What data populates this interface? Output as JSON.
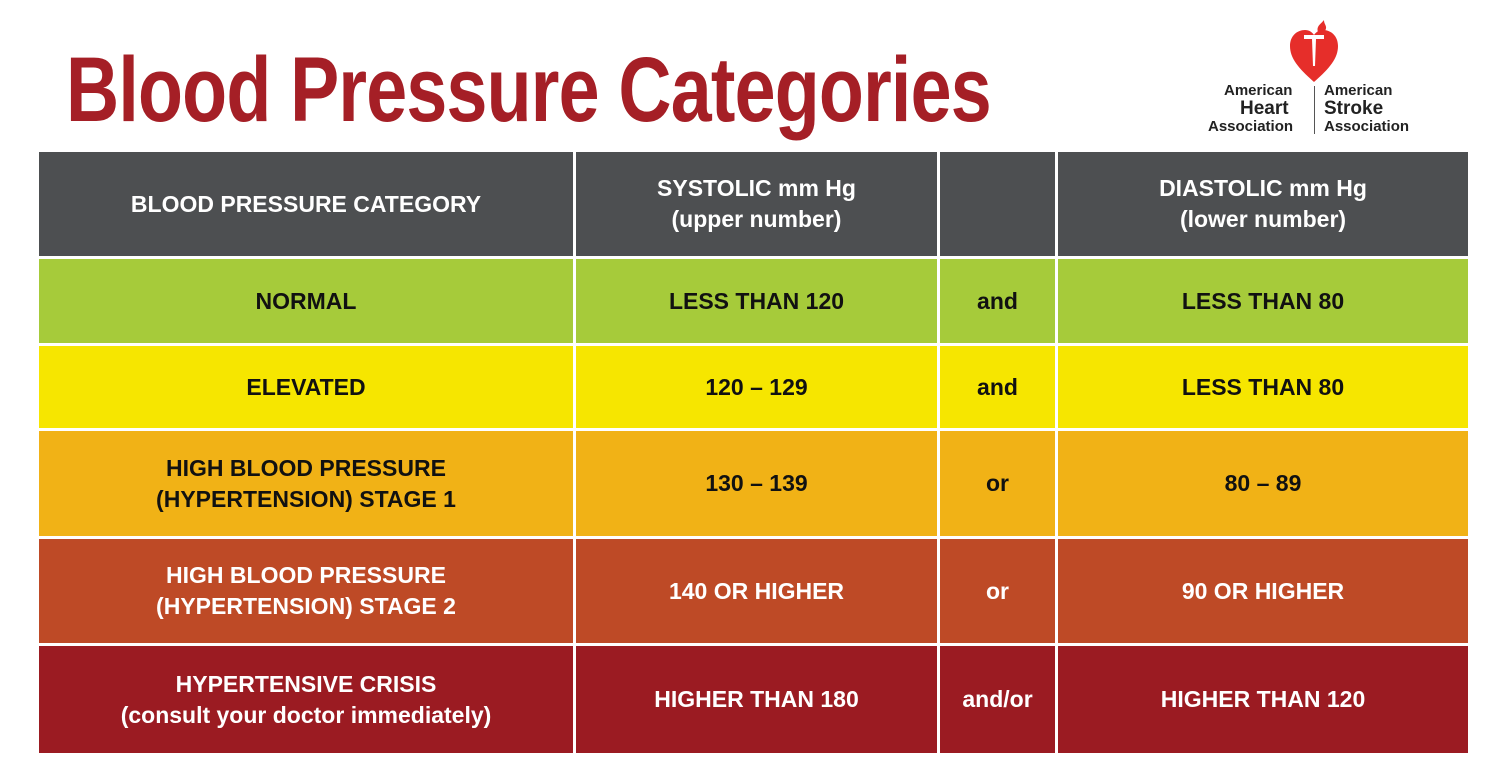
{
  "title": "Blood Pressure Categories",
  "logo": {
    "left": [
      "American",
      "Heart",
      "Association"
    ],
    "right": [
      "American",
      "Stroke",
      "Association"
    ]
  },
  "colors": {
    "title": "#a51f26",
    "header": "#4d4f51",
    "logo": "#e62e2a"
  },
  "table": {
    "headers": [
      "BLOOD PRESSURE CATEGORY",
      "SYSTOLIC mm Hg\n(upper number)",
      "",
      "DIASTOLIC mm Hg\n(lower number)"
    ],
    "rows": [
      {
        "category": "NORMAL",
        "systolic": "LESS THAN 120",
        "conj": "and",
        "diastolic": "LESS THAN 80",
        "color": "#a6cb3a",
        "text": "#111"
      },
      {
        "category": "ELEVATED",
        "systolic": "120 – 129",
        "conj": "and",
        "diastolic": "LESS THAN 80",
        "color": "#f6e600",
        "text": "#111"
      },
      {
        "category": "HIGH BLOOD PRESSURE\n(HYPERTENSION) STAGE 1",
        "systolic": "130 – 139",
        "conj": "or",
        "diastolic": "80 – 89",
        "color": "#f1b216",
        "text": "#111"
      },
      {
        "category": "HIGH BLOOD PRESSURE\n(HYPERTENSION) STAGE 2",
        "systolic": "140 OR HIGHER",
        "conj": "or",
        "diastolic": "90 OR HIGHER",
        "color": "#be4a26",
        "text": "#fff"
      },
      {
        "category": "HYPERTENSIVE CRISIS\n(consult your doctor immediately)",
        "systolic": "HIGHER THAN 180",
        "conj": "and/or",
        "diastolic": "HIGHER THAN 120",
        "color": "#9b1b22",
        "text": "#fff"
      }
    ]
  }
}
